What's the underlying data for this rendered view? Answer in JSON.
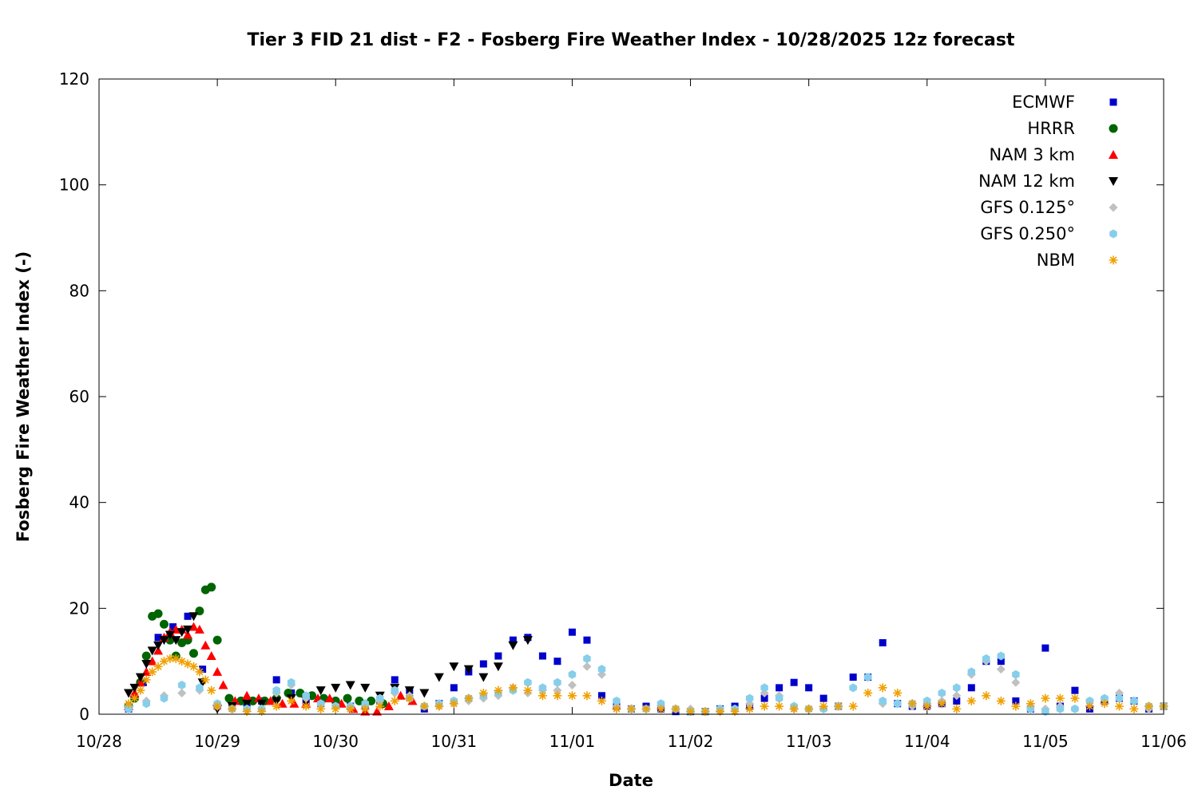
{
  "chart_data": {
    "type": "scatter",
    "title": "Tier 3 FID 21 dist - F2 - Fosberg Fire Weather Index - 10/28/2025 12z forecast",
    "xlabel": "Date",
    "ylabel": "Fosberg Fire Weather Index (-)",
    "x_unit": "days since 10/28 00z",
    "x_ticks": [
      "10/28",
      "10/29",
      "10/30",
      "10/31",
      "11/01",
      "11/02",
      "11/03",
      "11/04",
      "11/05",
      "11/06"
    ],
    "xlim": [
      "10/28",
      "11/06"
    ],
    "ylim": [
      0,
      120
    ],
    "y_ticks": [
      0,
      20,
      40,
      60,
      80,
      100,
      120
    ],
    "grid": false,
    "legend_position": "top-right",
    "series": [
      {
        "name": "ECMWF",
        "marker": "square",
        "color": "#0000cc",
        "x": [
          0.25,
          0.375,
          0.5,
          0.625,
          0.75,
          0.875,
          1.0,
          1.125,
          1.25,
          1.375,
          1.5,
          1.625,
          1.75,
          1.875,
          2.0,
          2.125,
          2.25,
          2.375,
          2.5,
          2.625,
          2.75,
          2.875,
          3.0,
          3.125,
          3.25,
          3.375,
          3.5,
          3.625,
          3.75,
          3.875,
          4.0,
          4.125,
          4.25,
          4.375,
          4.5,
          4.625,
          4.75,
          4.875,
          5.0,
          5.125,
          5.25,
          5.375,
          5.5,
          5.625,
          5.75,
          5.875,
          6.0,
          6.125,
          6.25,
          6.375,
          6.5,
          6.625,
          6.75,
          6.875,
          7.0,
          7.125,
          7.25,
          7.375,
          7.5,
          7.625,
          7.75,
          7.875,
          8.0,
          8.125,
          8.25,
          8.375,
          8.5,
          8.625,
          8.75,
          8.875,
          9.0
        ],
        "y": [
          1.0,
          6.0,
          14.5,
          16.5,
          18.5,
          8.5,
          1.5,
          1.5,
          2.0,
          2.5,
          6.5,
          4.0,
          2.5,
          2.0,
          2.0,
          1.5,
          1.5,
          2.5,
          6.5,
          4.5,
          1.0,
          2.0,
          5.0,
          8.0,
          9.5,
          11.0,
          14.0,
          14.5,
          11.0,
          10.0,
          15.5,
          14.0,
          3.5,
          1.5,
          1.0,
          1.5,
          1.0,
          0.5,
          0.5,
          0.5,
          1.0,
          1.5,
          1.5,
          3.0,
          5.0,
          6.0,
          5.0,
          3.0,
          1.5,
          7.0,
          7.0,
          13.5,
          2.0,
          1.5,
          1.5,
          2.0,
          2.5,
          5.0,
          10.0,
          10.0,
          2.5,
          1.0,
          12.5,
          1.5,
          4.5,
          1.0,
          2.5,
          3.0,
          2.5,
          1.0,
          1.5
        ]
      },
      {
        "name": "HRRR",
        "marker": "circle",
        "color": "#006400",
        "x": [
          0.25,
          0.3,
          0.35,
          0.4,
          0.45,
          0.5,
          0.55,
          0.6,
          0.65,
          0.7,
          0.75,
          0.8,
          0.85,
          0.9,
          0.95,
          1.0,
          1.1,
          1.2,
          1.3,
          1.4,
          1.5,
          1.6,
          1.7,
          1.8,
          1.9,
          2.0,
          2.1,
          2.2,
          2.3,
          2.4
        ],
        "y": [
          1.5,
          3.0,
          6.0,
          11.0,
          18.5,
          19.0,
          17.0,
          14.0,
          11.0,
          13.5,
          14.0,
          11.5,
          19.5,
          23.5,
          24.0,
          14.0,
          3.0,
          2.5,
          2.5,
          2.5,
          3.0,
          4.0,
          4.0,
          3.5,
          3.0,
          2.5,
          3.0,
          2.5,
          2.5,
          2.0
        ]
      },
      {
        "name": "NAM 3 km",
        "marker": "triangle-up",
        "color": "#ff0000",
        "x": [
          0.25,
          0.3,
          0.35,
          0.4,
          0.45,
          0.5,
          0.55,
          0.6,
          0.65,
          0.7,
          0.75,
          0.8,
          0.85,
          0.9,
          0.95,
          1.0,
          1.05,
          1.15,
          1.25,
          1.35,
          1.45,
          1.55,
          1.65,
          1.75,
          1.85,
          1.95,
          2.05,
          2.15,
          2.25,
          2.35,
          2.45,
          2.55,
          2.65
        ],
        "y": [
          1.5,
          4.0,
          6.0,
          8.0,
          10.0,
          12.0,
          14.5,
          15.5,
          16.0,
          16.0,
          15.0,
          16.5,
          16.0,
          13.0,
          11.0,
          8.0,
          5.5,
          2.5,
          3.5,
          3.0,
          2.5,
          2.0,
          2.0,
          2.0,
          3.0,
          3.0,
          2.0,
          1.0,
          0.5,
          0.5,
          1.5,
          3.5,
          2.5
        ]
      },
      {
        "name": "NAM 12 km",
        "marker": "triangle-down",
        "color": "#000000",
        "x": [
          0.25,
          0.3,
          0.35,
          0.4,
          0.45,
          0.5,
          0.55,
          0.6,
          0.65,
          0.7,
          0.75,
          0.8,
          0.875,
          1.0,
          1.125,
          1.25,
          1.375,
          1.5,
          1.625,
          1.75,
          1.875,
          2.0,
          2.125,
          2.25,
          2.375,
          2.5,
          2.625,
          2.75,
          2.875,
          3.0,
          3.125,
          3.25,
          3.375,
          3.5,
          3.625
        ],
        "y": [
          4.0,
          5.0,
          7.0,
          9.5,
          12.0,
          13.0,
          14.0,
          15.0,
          14.0,
          15.5,
          16.0,
          18.5,
          6.0,
          1.0,
          1.5,
          2.0,
          2.0,
          2.5,
          3.0,
          2.5,
          4.5,
          5.0,
          5.5,
          5.0,
          3.5,
          5.0,
          4.5,
          4.0,
          7.0,
          9.0,
          8.5,
          7.0,
          9.0,
          13.0,
          14.0
        ]
      },
      {
        "name": "GFS 0.125°",
        "marker": "diamond",
        "color": "#c0c0c0",
        "x": [
          0.25,
          0.4,
          0.55,
          0.7,
          0.85,
          1.0,
          1.125,
          1.25,
          1.375,
          1.5,
          1.625,
          1.75,
          1.875,
          2.0,
          2.125,
          2.25,
          2.375,
          2.5,
          2.625,
          2.75,
          2.875,
          3.0,
          3.125,
          3.25,
          3.375,
          3.5,
          3.625,
          3.75,
          3.875,
          4.0,
          4.125,
          4.25,
          4.375,
          4.5,
          4.625,
          4.75,
          4.875,
          5.0,
          5.125,
          5.25,
          5.375,
          5.5,
          5.625,
          5.75,
          5.875,
          6.0,
          6.125,
          6.25,
          6.375,
          6.5,
          6.625,
          6.75,
          6.875,
          7.0,
          7.125,
          7.25,
          7.375,
          7.5,
          7.625,
          7.75,
          7.875,
          8.0,
          8.125,
          8.25,
          8.375,
          8.5,
          8.625,
          8.75,
          8.875,
          9.0
        ],
        "y": [
          1.5,
          2.5,
          3.5,
          4.0,
          4.5,
          1.5,
          1.0,
          1.0,
          1.0,
          4.0,
          5.5,
          3.0,
          2.0,
          1.5,
          1.5,
          1.5,
          2.5,
          4.0,
          3.5,
          1.5,
          1.5,
          2.0,
          2.5,
          3.0,
          3.5,
          5.0,
          4.0,
          4.5,
          4.5,
          5.5,
          9.0,
          7.5,
          1.5,
          1.0,
          1.0,
          1.5,
          1.0,
          1.0,
          0.5,
          0.5,
          1.0,
          2.0,
          4.0,
          3.5,
          1.0,
          1.0,
          1.0,
          1.5,
          5.0,
          7.0,
          2.0,
          2.0,
          1.5,
          2.0,
          2.5,
          3.5,
          7.5,
          10.0,
          8.5,
          6.0,
          1.5,
          1.0,
          1.5,
          1.0,
          2.5,
          3.0,
          4.0,
          2.5,
          1.0,
          1.5
        ]
      },
      {
        "name": "GFS 0.250°",
        "marker": "hexagon",
        "color": "#87ceeb",
        "x": [
          0.25,
          0.4,
          0.55,
          0.7,
          0.85,
          1.0,
          1.125,
          1.25,
          1.375,
          1.5,
          1.625,
          1.75,
          1.875,
          2.0,
          2.125,
          2.25,
          2.375,
          2.5,
          2.625,
          2.75,
          2.875,
          3.0,
          3.125,
          3.25,
          3.375,
          3.5,
          3.625,
          3.75,
          3.875,
          4.0,
          4.125,
          4.25,
          4.375,
          4.5,
          4.625,
          4.75,
          4.875,
          5.0,
          5.125,
          5.25,
          5.375,
          5.5,
          5.625,
          5.75,
          5.875,
          6.0,
          6.125,
          6.25,
          6.375,
          6.5,
          6.625,
          6.75,
          6.875,
          7.0,
          7.125,
          7.25,
          7.375,
          7.5,
          7.625,
          7.75,
          7.875,
          8.0,
          8.125,
          8.25,
          8.375,
          8.5,
          8.625,
          8.75,
          8.875,
          9.0
        ],
        "y": [
          1.0,
          2.0,
          3.0,
          5.5,
          5.0,
          2.0,
          1.0,
          1.0,
          1.0,
          4.5,
          6.0,
          3.5,
          2.0,
          1.5,
          1.5,
          2.0,
          3.0,
          4.5,
          3.0,
          1.5,
          2.0,
          2.5,
          3.0,
          3.5,
          4.0,
          4.5,
          6.0,
          5.0,
          6.0,
          7.5,
          10.5,
          8.5,
          2.5,
          1.0,
          1.0,
          2.0,
          1.0,
          0.5,
          0.5,
          1.0,
          1.0,
          3.0,
          5.0,
          3.0,
          1.5,
          1.0,
          1.0,
          1.5,
          5.0,
          7.0,
          2.5,
          2.0,
          2.0,
          2.5,
          4.0,
          5.0,
          8.0,
          10.5,
          11.0,
          7.5,
          1.0,
          0.5,
          1.0,
          1.0,
          2.5,
          3.0,
          3.0,
          2.5,
          1.5,
          1.5
        ]
      },
      {
        "name": "NBM",
        "marker": "asterisk",
        "color": "#f0a000",
        "x": [
          0.25,
          0.3,
          0.35,
          0.4,
          0.45,
          0.5,
          0.55,
          0.6,
          0.65,
          0.7,
          0.75,
          0.8,
          0.85,
          0.9,
          0.95,
          1.0,
          1.125,
          1.25,
          1.375,
          1.5,
          1.625,
          1.75,
          1.875,
          2.0,
          2.125,
          2.25,
          2.375,
          2.5,
          2.625,
          2.75,
          2.875,
          3.0,
          3.125,
          3.25,
          3.375,
          3.5,
          3.625,
          3.75,
          3.875,
          4.0,
          4.125,
          4.25,
          4.375,
          4.5,
          4.625,
          4.75,
          4.875,
          5.0,
          5.125,
          5.25,
          5.375,
          5.5,
          5.625,
          5.75,
          5.875,
          6.0,
          6.125,
          6.25,
          6.375,
          6.5,
          6.625,
          6.75,
          6.875,
          7.0,
          7.125,
          7.25,
          7.375,
          7.5,
          7.625,
          7.75,
          7.875,
          8.0,
          8.125,
          8.25,
          8.375,
          8.5,
          8.625,
          8.75,
          8.875,
          9.0
        ],
        "y": [
          2.0,
          3.0,
          4.5,
          6.5,
          8.0,
          9.0,
          10.0,
          10.5,
          10.5,
          10.0,
          9.5,
          9.0,
          8.0,
          6.5,
          4.5,
          1.5,
          1.0,
          0.5,
          0.5,
          1.5,
          2.5,
          1.5,
          1.0,
          1.0,
          1.0,
          1.0,
          1.5,
          2.5,
          3.0,
          1.5,
          1.5,
          2.0,
          3.0,
          4.0,
          4.5,
          5.0,
          4.5,
          3.5,
          3.5,
          3.5,
          3.5,
          2.5,
          1.0,
          1.0,
          1.0,
          1.0,
          1.0,
          0.5,
          0.5,
          0.5,
          0.5,
          1.0,
          1.5,
          1.5,
          1.0,
          1.0,
          1.5,
          1.5,
          1.5,
          4.0,
          5.0,
          4.0,
          2.0,
          1.5,
          2.0,
          1.0,
          2.5,
          3.5,
          2.5,
          1.5,
          2.0,
          3.0,
          3.0,
          3.0,
          1.5,
          2.0,
          1.5,
          1.0,
          1.5,
          1.5
        ]
      }
    ]
  }
}
